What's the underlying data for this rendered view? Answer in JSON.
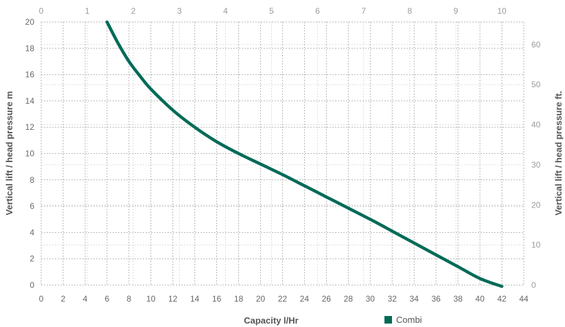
{
  "colors": {
    "series": "#006b57",
    "grid_major": "#b5b5b5",
    "grid_minor": "#dcdcdc"
  },
  "chart_data": {
    "type": "line",
    "xlabel": "Capacity l/Hr",
    "ylabel": "Vertical lift / head pressure m",
    "y2label": "Vertical lift / head pressure ft.",
    "xlim": [
      0,
      44
    ],
    "ylim": [
      0,
      20
    ],
    "x_ticks": [
      0,
      2,
      4,
      6,
      8,
      10,
      12,
      14,
      16,
      18,
      20,
      22,
      24,
      26,
      28,
      30,
      32,
      34,
      36,
      38,
      40,
      42,
      44
    ],
    "y_ticks": [
      0,
      2,
      4,
      6,
      8,
      10,
      12,
      14,
      16,
      18,
      20
    ],
    "x2_ticks": [
      0,
      1,
      2,
      3,
      4,
      5,
      6,
      7,
      8,
      9,
      10
    ],
    "y2_ticks": [
      0,
      10,
      20,
      30,
      40,
      50,
      60
    ],
    "grid": true,
    "legend": "bottom-right",
    "series": [
      {
        "name": "Combi",
        "x": [
          6,
          7,
          8,
          9,
          10,
          12,
          14,
          16,
          18,
          20,
          22,
          24,
          26,
          28,
          30,
          32,
          34,
          36,
          38,
          40,
          42
        ],
        "y": [
          20,
          18.4,
          17.0,
          15.9,
          14.9,
          13.3,
          12.0,
          10.9,
          10.0,
          9.2,
          8.4,
          7.55,
          6.7,
          5.85,
          5.0,
          4.1,
          3.2,
          2.3,
          1.4,
          0.5,
          -0.1
        ]
      }
    ]
  }
}
